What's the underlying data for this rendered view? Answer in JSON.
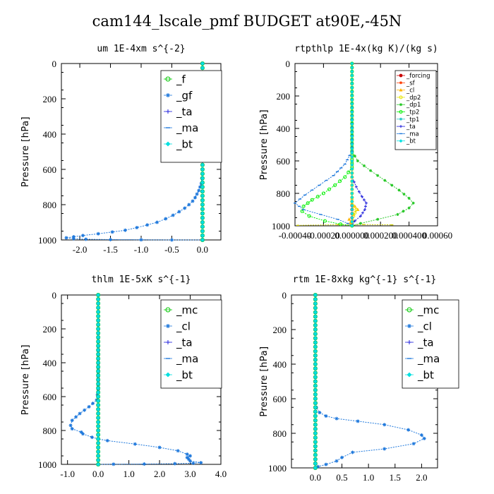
{
  "figure_title": "cam144_lscale_pmf  BUDGET at90E,-45N",
  "chart_data": [
    {
      "type": "line",
      "title": "um   1E-4xm s^{-2}",
      "ylabel": "Pressure [hPa]",
      "xlim": [
        -2.3,
        0.3
      ],
      "ylim": [
        1000,
        0
      ],
      "grid": false,
      "xticks": [
        -2.0,
        -1.5,
        -1.0,
        -0.5,
        0.0
      ],
      "xtick_labels": [
        "-2.0",
        "-1.5",
        "-1.0",
        "-0.5",
        "0.0"
      ],
      "yticks": [
        0,
        200,
        400,
        600,
        800,
        1000
      ],
      "ytick_labels": [
        "0",
        "200",
        "400",
        "600",
        "800",
        "1000"
      ],
      "legend_position": "top-right",
      "series": [
        {
          "name": "_f",
          "color": "#00c800",
          "marker": "circle-open",
          "x": [
            0,
            0
          ],
          "y": [
            0,
            1000
          ]
        },
        {
          "name": "_gf",
          "color": "#1e78dc",
          "marker": "star",
          "x": [
            0,
            0
          ],
          "y": [
            0,
            1000
          ]
        },
        {
          "name": "_ta",
          "color": "#1e1edc",
          "marker": "plus",
          "x": [
            0,
            0
          ],
          "y": [
            0,
            1000
          ]
        },
        {
          "name": "_ma",
          "color": "#1e78dc",
          "marker": "dash",
          "x": [
            0,
            0
          ],
          "y": [
            0,
            1000
          ]
        },
        {
          "name": "_bt",
          "color": "#00e0e0",
          "marker": "diamond",
          "x": [
            0,
            0
          ],
          "y": [
            0,
            1000
          ]
        },
        {
          "name": "",
          "color": "#1e78dc",
          "marker": "star",
          "x": [
            0,
            0,
            0,
            -0.01,
            -0.02,
            -0.04,
            -0.06,
            -0.09,
            -0.12,
            -0.16,
            -0.22,
            -0.29,
            -0.38,
            -0.48,
            -0.6,
            -0.74,
            -0.9,
            -1.07,
            -1.26,
            -1.47,
            -1.7,
            -1.95,
            -2.1,
            -2.22,
            -2.1,
            -1.9,
            -1.5,
            -1.0,
            -0.5,
            0
          ],
          "y": [
            0,
            500,
            600,
            650,
            680,
            700,
            720,
            740,
            760,
            780,
            800,
            820,
            840,
            860,
            880,
            900,
            915,
            930,
            945,
            955,
            965,
            975,
            982,
            988,
            993,
            996,
            998,
            999,
            1000,
            1000
          ]
        }
      ]
    },
    {
      "type": "line",
      "title": "rtpthlp   1E-4x(kg K)/(kg s)",
      "ylabel": "Pressure [hPa]",
      "xlim": [
        -0.0004,
        0.0006
      ],
      "ylim": [
        1000,
        0
      ],
      "grid": false,
      "xticks": [
        -0.0004,
        -0.0002,
        0.0,
        0.0002,
        0.0004,
        0.0006
      ],
      "xtick_labels": [
        "-0.00040",
        "-0.00020",
        "0.000000",
        "0.000200",
        "0.000400",
        "0.00060"
      ],
      "yticks": [
        0,
        200,
        400,
        600,
        800,
        1000
      ],
      "ytick_labels": [
        "0",
        "200",
        "400",
        "600",
        "800",
        "1000"
      ],
      "legend_position": "top-right",
      "series": [
        {
          "name": "_forcing",
          "color": "#c80000",
          "marker": "circle",
          "x": [
            0,
            0
          ],
          "y": [
            0,
            1000
          ]
        },
        {
          "name": "_sf",
          "color": "#ff3c00",
          "marker": "star",
          "x": [
            0,
            0
          ],
          "y": [
            0,
            1000
          ]
        },
        {
          "name": "_cl",
          "color": "#ffb400",
          "marker": "triangle",
          "x": [
            0,
            0,
            0,
            2e-05,
            4e-05,
            1e-05,
            -2e-05,
            0
          ],
          "y": [
            0,
            800,
            860,
            880,
            900,
            930,
            960,
            1000
          ]
        },
        {
          "name": "_dp2",
          "color": "#e6e600",
          "marker": "circle-open",
          "x": [
            0,
            0,
            1e-05,
            3e-05,
            1e-05,
            0
          ],
          "y": [
            0,
            850,
            880,
            900,
            940,
            1000
          ]
        },
        {
          "name": "_dp1",
          "color": "#28c828",
          "marker": "star",
          "x": [
            0,
            0,
            4e-05,
            0.00013,
            0.00023,
            0.00033,
            0.0004,
            0.00043,
            0.0004,
            0.00032,
            0.00018,
            6e-05,
            0
          ],
          "y": [
            0,
            540,
            600,
            660,
            720,
            780,
            830,
            860,
            890,
            930,
            960,
            985,
            1000
          ]
        },
        {
          "name": "_tp2",
          "color": "#00f000",
          "marker": "circle-open",
          "x": [
            0,
            0,
            -5e-05,
            -0.00012,
            -0.0002,
            -0.00028,
            -0.00034,
            -0.00035,
            -0.0003,
            -0.00019,
            -8e-05,
            0
          ],
          "y": [
            0,
            640,
            700,
            750,
            800,
            840,
            880,
            910,
            940,
            970,
            990,
            1000
          ]
        },
        {
          "name": "_tp1",
          "color": "#28c8c8",
          "marker": "star",
          "x": [
            0,
            0
          ],
          "y": [
            0,
            1000
          ]
        },
        {
          "name": "_ta",
          "color": "#1e1edc",
          "marker": "plus",
          "x": [
            0,
            0,
            3e-05,
            7e-05,
            0.0001,
            9e-05,
            6e-05,
            2e-05,
            0
          ],
          "y": [
            0,
            700,
            760,
            820,
            860,
            900,
            940,
            970,
            1000
          ]
        },
        {
          "name": "_ma",
          "color": "#1e78dc",
          "marker": "dash",
          "x": [
            0,
            0,
            -5e-05,
            -0.00013,
            -0.00023,
            -0.00033,
            -0.0004,
            -0.00034,
            -0.00022,
            -0.0001,
            -3e-05,
            0
          ],
          "y": [
            0,
            540,
            620,
            690,
            750,
            810,
            860,
            900,
            930,
            960,
            985,
            1000
          ]
        },
        {
          "name": "_bt",
          "color": "#00e0e0",
          "marker": "diamond",
          "x": [
            0,
            0
          ],
          "y": [
            0,
            1000
          ]
        },
        {
          "name": "",
          "color": "#c8c800",
          "marker": "dash",
          "x": [
            -0.00038,
            -0.0001,
            8e-05,
            0.00028
          ],
          "y": [
            997,
            993,
            992,
            994
          ]
        }
      ]
    },
    {
      "type": "line",
      "title": "thlm   1E-5xK s^{-1}",
      "ylabel": "Pressure [hPa]",
      "xlim": [
        -1.2,
        4.0
      ],
      "ylim": [
        1000,
        0
      ],
      "grid": false,
      "xticks": [
        -1.0,
        0.0,
        1.0,
        2.0,
        3.0,
        4.0
      ],
      "xtick_labels": [
        "-1.0",
        "0.0",
        "1.0",
        "2.0",
        "3.0",
        "4.0"
      ],
      "yticks": [
        0,
        200,
        400,
        600,
        800,
        1000
      ],
      "ytick_labels": [
        "0",
        "200",
        "400",
        "600",
        "800",
        "1000"
      ],
      "legend_position": "top-right",
      "series": [
        {
          "name": "_mc",
          "color": "#00c800",
          "marker": "circle-open",
          "x": [
            0,
            0
          ],
          "y": [
            0,
            1000
          ]
        },
        {
          "name": "_cl",
          "color": "#1e78dc",
          "marker": "star",
          "x": [
            0,
            0
          ],
          "y": [
            0,
            1000
          ]
        },
        {
          "name": "_ta",
          "color": "#1e1edc",
          "marker": "plus",
          "x": [
            0,
            0
          ],
          "y": [
            0,
            1000
          ]
        },
        {
          "name": "_ma",
          "color": "#1e78dc",
          "marker": "dash",
          "x": [
            0,
            0
          ],
          "y": [
            0,
            1000
          ]
        },
        {
          "name": "_bt",
          "color": "#00e0e0",
          "marker": "diamond",
          "x": [
            0,
            0
          ],
          "y": [
            0,
            1000
          ]
        },
        {
          "name": "",
          "color": "#1e78dc",
          "marker": "star",
          "x": [
            0,
            0,
            -0.05,
            -0.3,
            -0.6,
            -0.85,
            -0.9,
            -0.85,
            -0.55,
            -0.5,
            -0.2,
            0,
            0.3,
            1.2,
            2.0,
            2.6,
            2.9,
            3.0,
            2.9,
            2.95,
            3.0,
            3.35,
            3.1,
            2.5,
            1.5,
            0.5,
            0
          ],
          "y": [
            0,
            560,
            620,
            660,
            700,
            740,
            770,
            790,
            810,
            820,
            840,
            850,
            860,
            880,
            900,
            920,
            940,
            950,
            960,
            970,
            980,
            990,
            993,
            996,
            998,
            999,
            1000
          ]
        }
      ]
    },
    {
      "type": "line",
      "title": "rtm   1E-8xkg kg^{-1} s^{-1}",
      "ylabel": "Pressure [hPa]",
      "xlim": [
        -0.45,
        2.3
      ],
      "ylim": [
        1000,
        0
      ],
      "grid": false,
      "xticks": [
        0.0,
        0.5,
        1.0,
        1.5,
        2.0
      ],
      "xtick_labels": [
        "0.0",
        "0.5",
        "1.0",
        "1.5",
        "2.0"
      ],
      "yticks": [
        0,
        200,
        400,
        600,
        800,
        1000
      ],
      "ytick_labels": [
        "0",
        "200",
        "400",
        "600",
        "800",
        "1000"
      ],
      "legend_position": "top-right",
      "series": [
        {
          "name": "_mc",
          "color": "#00c800",
          "marker": "circle-open",
          "x": [
            0,
            0
          ],
          "y": [
            0,
            1000
          ]
        },
        {
          "name": "_cl",
          "color": "#1e78dc",
          "marker": "star",
          "x": [
            0,
            0
          ],
          "y": [
            0,
            1000
          ]
        },
        {
          "name": "_ta",
          "color": "#1e1edc",
          "marker": "plus",
          "x": [
            0,
            0
          ],
          "y": [
            0,
            1000
          ]
        },
        {
          "name": "_ma",
          "color": "#1e78dc",
          "marker": "dash",
          "x": [
            0,
            0
          ],
          "y": [
            0,
            1000
          ]
        },
        {
          "name": "_bt",
          "color": "#00e0e0",
          "marker": "diamond",
          "x": [
            0,
            0
          ],
          "y": [
            0,
            1000
          ]
        },
        {
          "name": "",
          "color": "#1e78dc",
          "marker": "star",
          "x": [
            0,
            0,
            0.02,
            0.08,
            0.2,
            0.4,
            0.8,
            1.3,
            1.75,
            2.0,
            2.05,
            1.85,
            1.3,
            0.7,
            0.5,
            0.4,
            0.2,
            0.05,
            0
          ],
          "y": [
            0,
            600,
            650,
            680,
            700,
            715,
            730,
            750,
            780,
            810,
            830,
            860,
            890,
            910,
            940,
            960,
            980,
            993,
            1000
          ]
        }
      ]
    }
  ]
}
